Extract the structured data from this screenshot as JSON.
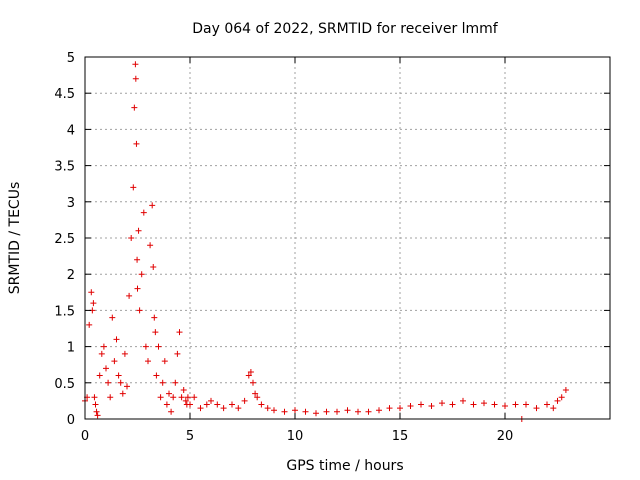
{
  "chart_data": {
    "type": "scatter",
    "title": "Day 064 of 2022, SRMTID for receiver lmmf",
    "xlabel": "GPS time / hours",
    "ylabel": "SRMTID / TECUs",
    "xlim": [
      0,
      25
    ],
    "ylim": [
      0,
      5
    ],
    "xticks": [
      0,
      5,
      10,
      15,
      20
    ],
    "xtick_labels": [
      "0",
      "5",
      "10",
      "15",
      "20"
    ],
    "yticks": [
      0,
      0.5,
      1,
      1.5,
      2,
      2.5,
      3,
      3.5,
      4,
      4.5,
      5
    ],
    "ytick_labels": [
      "0",
      "0.5",
      "1",
      "1.5",
      "2",
      "2.5",
      "3",
      "3.5",
      "4",
      "4.5",
      "5"
    ],
    "grid": true,
    "marker": "+",
    "color": "#e00000",
    "series": [
      {
        "name": "SRMTID",
        "x": [
          0.0,
          0.1,
          0.2,
          0.3,
          0.35,
          0.4,
          0.45,
          0.5,
          0.55,
          0.6,
          0.7,
          0.8,
          0.9,
          1.0,
          1.1,
          1.2,
          1.3,
          1.4,
          1.5,
          1.6,
          1.7,
          1.8,
          1.9,
          2.0,
          2.1,
          2.2,
          2.3,
          2.35,
          2.4,
          2.42,
          2.45,
          2.48,
          2.5,
          2.55,
          2.6,
          2.7,
          2.8,
          2.9,
          3.0,
          3.1,
          3.2,
          3.25,
          3.3,
          3.35,
          3.4,
          3.5,
          3.6,
          3.7,
          3.8,
          3.9,
          4.0,
          4.1,
          4.2,
          4.3,
          4.4,
          4.5,
          4.6,
          4.7,
          4.8,
          4.85,
          4.9,
          5.0,
          5.2,
          5.5,
          5.8,
          6.0,
          6.3,
          6.6,
          7.0,
          7.3,
          7.6,
          7.8,
          7.9,
          8.0,
          8.1,
          8.2,
          8.4,
          8.7,
          9.0,
          9.5,
          10.0,
          10.5,
          11.0,
          11.5,
          12.0,
          12.5,
          13.0,
          13.5,
          14.0,
          14.5,
          15.0,
          15.5,
          16.0,
          16.5,
          17.0,
          17.5,
          18.0,
          18.5,
          19.0,
          19.5,
          20.0,
          20.5,
          20.8,
          21.0,
          21.5,
          22.0,
          22.3,
          22.5,
          22.7,
          22.9
        ],
        "y": [
          0.25,
          0.3,
          1.3,
          1.75,
          1.5,
          1.6,
          0.3,
          0.2,
          0.1,
          0.05,
          0.6,
          0.9,
          1.0,
          0.7,
          0.5,
          0.3,
          1.4,
          0.8,
          1.1,
          0.6,
          0.5,
          0.35,
          0.9,
          0.45,
          1.7,
          2.5,
          3.2,
          4.3,
          4.9,
          4.7,
          3.8,
          2.2,
          1.8,
          2.6,
          1.5,
          2.0,
          2.85,
          1.0,
          0.8,
          2.4,
          2.95,
          2.1,
          1.4,
          1.2,
          0.6,
          1.0,
          0.3,
          0.5,
          0.8,
          0.2,
          0.35,
          0.1,
          0.3,
          0.5,
          0.9,
          1.2,
          0.3,
          0.4,
          0.25,
          0.2,
          0.3,
          0.2,
          0.3,
          0.15,
          0.2,
          0.25,
          0.2,
          0.15,
          0.2,
          0.15,
          0.25,
          0.6,
          0.65,
          0.5,
          0.35,
          0.3,
          0.2,
          0.15,
          0.12,
          0.1,
          0.12,
          0.1,
          0.08,
          0.1,
          0.1,
          0.12,
          0.1,
          0.1,
          0.12,
          0.15,
          0.15,
          0.18,
          0.2,
          0.18,
          0.22,
          0.2,
          0.25,
          0.2,
          0.22,
          0.2,
          0.18,
          0.2,
          0.0,
          0.2,
          0.15,
          0.2,
          0.15,
          0.25,
          0.3,
          0.4
        ]
      }
    ]
  }
}
